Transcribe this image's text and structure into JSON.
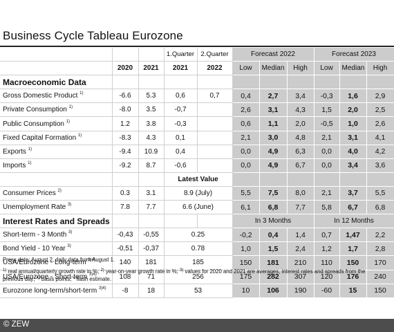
{
  "title": "Business Cycle Tableau Eurozone",
  "header": {
    "row1": [
      "1.Quarter",
      "2.Quarter",
      "Forecast 2022",
      "Forecast 2023"
    ],
    "row2": [
      "2020",
      "2021",
      "2021",
      "2022",
      "Low",
      "Median",
      "High",
      "Low",
      "Median",
      "High"
    ]
  },
  "sections": {
    "macro": "Macroeconomic Data",
    "rates": "Interest Rates and Spreads",
    "latest": "Latest Value",
    "in3": "In 3 Months",
    "in12": "In 12 Months"
  },
  "macro_rows": [
    {
      "label": "Gross Domestic Product",
      "sup": "1)",
      "y2020": "-6.6",
      "y2021": "5.3",
      "q1": "0,6",
      "q2": "0,7",
      "f22": [
        "0,4",
        "2,7",
        "3,4"
      ],
      "f23": [
        "-0,3",
        "1,6",
        "2,9"
      ]
    },
    {
      "label": "Private Consumption",
      "sup": "1)",
      "y2020": "-8.0",
      "y2021": "3.5",
      "q1": "-0,7",
      "q2": "",
      "f22": [
        "2,6",
        "3,1",
        "4,3"
      ],
      "f23": [
        "1,5",
        "2,0",
        "2,5"
      ]
    },
    {
      "label": "Public Consumption",
      "sup": "1)",
      "y2020": "1.2",
      "y2021": "3.8",
      "q1": "-0,3",
      "q2": "",
      "f22": [
        "0,6",
        "1,1",
        "2,0"
      ],
      "f23": [
        "-0,5",
        "1,0",
        "2,6"
      ]
    },
    {
      "label": "Fixed Capital Formation",
      "sup": "1)",
      "y2020": "-8.3",
      "y2021": "4.3",
      "q1": "0,1",
      "q2": "",
      "f22": [
        "2,1",
        "3,0",
        "4,8"
      ],
      "f23": [
        "2,1",
        "3,1",
        "4,1"
      ]
    },
    {
      "label": "Exports",
      "sup": "1)",
      "y2020": "-9.4",
      "y2021": "10.9",
      "q1": "0,4",
      "q2": "",
      "f22": [
        "0,0",
        "4,9",
        "6,3"
      ],
      "f23": [
        "0,0",
        "4,0",
        "4,2"
      ]
    },
    {
      "label": "Imports",
      "sup": "1)",
      "y2020": "-9.2",
      "y2021": "8.7",
      "q1": "-0,6",
      "q2": "",
      "f22": [
        "0,0",
        "4,9",
        "6,7"
      ],
      "f23": [
        "0,0",
        "3,4",
        "3,6"
      ]
    }
  ],
  "latest_rows": [
    {
      "label": "Consumer Prices",
      "sup": "2)",
      "y2020": "0.3",
      "y2021": "3.1",
      "latest": "8.9 (July)",
      "f22": [
        "5,5",
        "7,5",
        "8,0"
      ],
      "f23": [
        "2,1",
        "3,7",
        "5,5"
      ]
    },
    {
      "label": "Unemployment Rate",
      "sup": "3)",
      "y2020": "7.8",
      "y2021": "7.7",
      "latest": "6.6 (June)",
      "f22": [
        "6,1",
        "6,8",
        "7,7"
      ],
      "f23": [
        "5,8",
        "6,7",
        "6,8"
      ]
    }
  ],
  "rate_rows": [
    {
      "label": "Short-term - 3 Month",
      "sup": "3)",
      "y2020": "-0,43",
      "y2021": "-0,55",
      "latest": "0.25",
      "m3": [
        "-0,2",
        "0,4",
        "1,4"
      ],
      "m12": [
        "0,7",
        "1,47",
        "2,2"
      ]
    },
    {
      "label": "Bond Yield - 10 Year",
      "sup": "3)",
      "y2020": "-0,51",
      "y2021": "-0,37",
      "latest": "0.78",
      "m3": [
        "1,0",
        "1,5",
        "2,4"
      ],
      "m12": [
        "1,2",
        "1,7",
        "2,8"
      ]
    },
    {
      "label": "USA/Eurozone - Long-term",
      "sup": "3)4)",
      "y2020": "140",
      "y2021": "181",
      "latest": "185",
      "m3": [
        "150",
        "181",
        "210"
      ],
      "m12": [
        "110",
        "150",
        "170"
      ]
    },
    {
      "label": "USA/Eurozone - Short-term",
      "sup": "3)4)",
      "y2020": "108",
      "y2021": "71",
      "latest": "256",
      "m3": [
        "175",
        "282",
        "307"
      ],
      "m12": [
        "120",
        "176",
        "240"
      ]
    },
    {
      "label": "Eurozone long-term/short-term",
      "sup": "3)4)",
      "y2020": "-8",
      "y2021": "18",
      "latest": "53",
      "m3": [
        "10",
        "106",
        "190"
      ],
      "m12": [
        "-60",
        "15",
        "150"
      ]
    }
  ],
  "footnotes": {
    "line1": "Press date: August 2, daily data from August 1.",
    "note1_sup": "1)",
    "note1": " real annual/quarterly growth rate in %; ",
    "note2_sup": "2)",
    "note2": " year-on-year growth rate in %; ",
    "note3_sup": "3)",
    "note3": " values for 2020  and 2021 are averages, interest rates and spreads from the",
    "line3a": "previous day; ",
    "note4_sup": "4)",
    "line3b": " basis points; * flash estimate."
  },
  "copyright": "© ZEW"
}
